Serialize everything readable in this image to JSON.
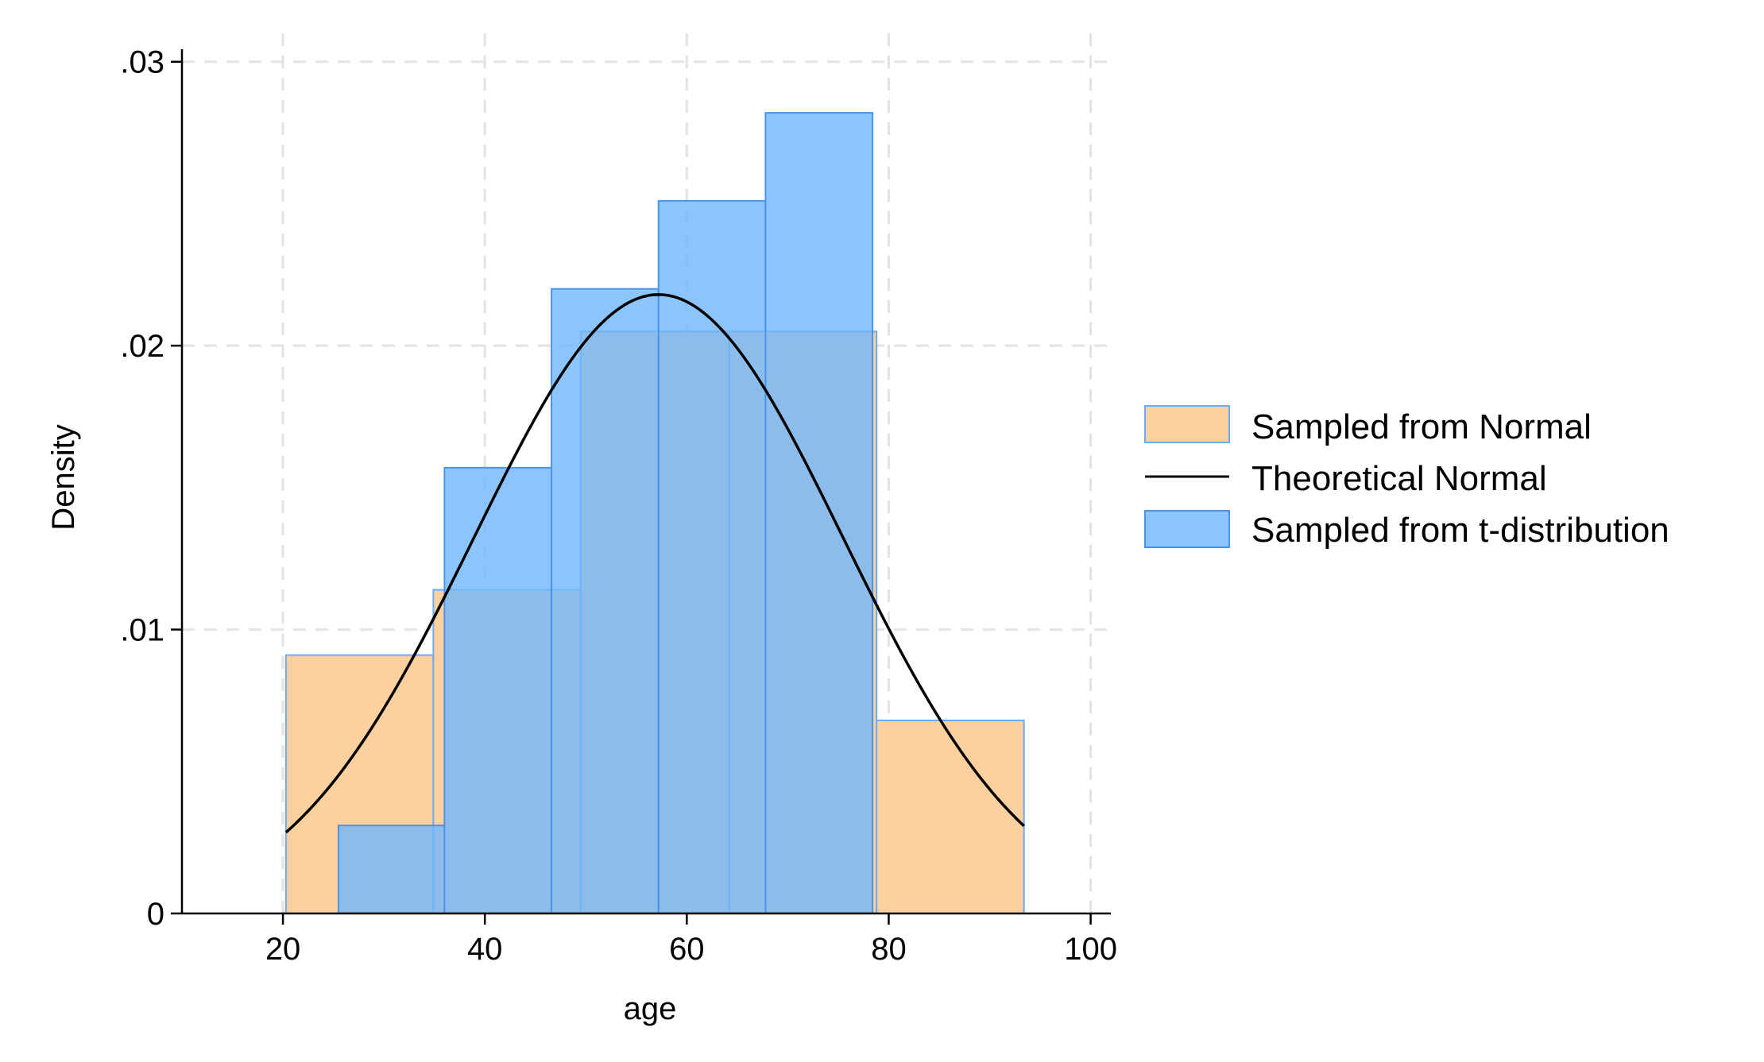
{
  "chart_data": {
    "type": "bar",
    "subtype": "overlaid-histogram-with-density-curve",
    "title": "",
    "xlabel": "age",
    "ylabel": "Density",
    "xlim": [
      10,
      102
    ],
    "ylim": [
      0,
      0.031
    ],
    "x_ticks": [
      20,
      40,
      60,
      80,
      100
    ],
    "x_tick_labels": [
      "20",
      "40",
      "60",
      "80",
      "100"
    ],
    "y_ticks": [
      0,
      0.01,
      0.02,
      0.03
    ],
    "y_tick_labels": [
      "0",
      ".01",
      ".02",
      ".03"
    ],
    "grid": true,
    "legend_position": "right",
    "series": [
      {
        "name": "Sampled from Normal",
        "kind": "histogram",
        "color": "#fdd09f",
        "edge_color": "#6aabf5",
        "bins": [
          {
            "x0": 20.3,
            "x1": 34.9,
            "density": 0.0091
          },
          {
            "x0": 34.9,
            "x1": 49.5,
            "density": 0.0114
          },
          {
            "x0": 49.5,
            "x1": 64.2,
            "density": 0.0205
          },
          {
            "x0": 64.2,
            "x1": 78.8,
            "density": 0.0205
          },
          {
            "x0": 78.8,
            "x1": 93.4,
            "density": 0.0068
          }
        ]
      },
      {
        "name": "Theoretical Normal",
        "kind": "line",
        "color": "#000000",
        "mean": 57.2,
        "sd": 18.3,
        "x_range": [
          20.3,
          93.4
        ]
      },
      {
        "name": "Sampled from t-distribution",
        "kind": "histogram",
        "color": "#6fb6fb",
        "opacity": 0.8,
        "edge_color": "#4a95e8",
        "bins": [
          {
            "x0": 25.5,
            "x1": 36.0,
            "density": 0.0031
          },
          {
            "x0": 36.0,
            "x1": 46.6,
            "density": 0.0157
          },
          {
            "x0": 46.6,
            "x1": 57.2,
            "density": 0.022
          },
          {
            "x0": 57.2,
            "x1": 67.8,
            "density": 0.0251
          },
          {
            "x0": 67.8,
            "x1": 78.4,
            "density": 0.0282
          }
        ]
      }
    ]
  }
}
